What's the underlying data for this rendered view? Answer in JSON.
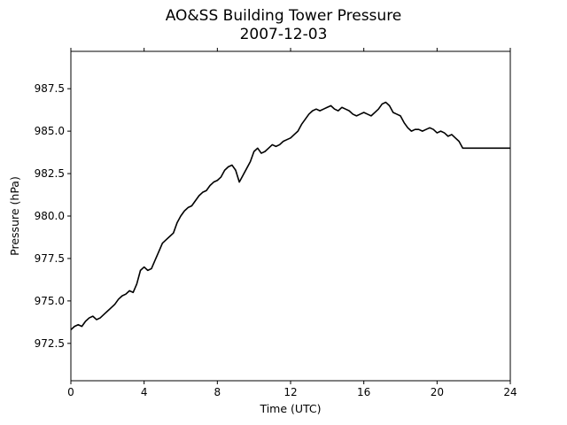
{
  "chart_data": {
    "type": "line",
    "title": "AO&SS Building Tower Pressure",
    "subtitle": "2007-12-03",
    "xlabel": "Time (UTC)",
    "ylabel": "Pressure (hPa)",
    "xlim": [
      0,
      24
    ],
    "ylim": [
      970.3,
      989.7
    ],
    "xticks": [
      0,
      4,
      8,
      12,
      16,
      20,
      24
    ],
    "xtick_labels": [
      "0",
      "4",
      "8",
      "12",
      "16",
      "20",
      "24"
    ],
    "yticks": [
      972.5,
      975.0,
      977.5,
      980.0,
      982.5,
      985.0,
      987.5
    ],
    "ytick_labels": [
      "972.5",
      "975.0",
      "977.5",
      "980.0",
      "982.5",
      "985.0",
      "987.5"
    ],
    "grid": false,
    "line_color": "#000000",
    "series": [
      {
        "x": [
          0,
          0.2,
          0.4,
          0.6,
          0.8,
          1.0,
          1.2,
          1.4,
          1.6,
          1.8,
          2.0,
          2.2,
          2.4,
          2.6,
          2.8,
          3.0,
          3.2,
          3.4,
          3.6,
          3.8,
          4.0,
          4.2,
          4.4,
          4.6,
          4.8,
          5.0,
          5.2,
          5.4,
          5.6,
          5.8,
          6.0,
          6.2,
          6.4,
          6.6,
          6.8,
          7.0,
          7.2,
          7.4,
          7.6,
          7.8,
          8.0,
          8.2,
          8.4,
          8.6,
          8.8,
          9.0,
          9.2,
          9.4,
          9.6,
          9.8,
          10.0,
          10.2,
          10.4,
          10.6,
          10.8,
          11.0,
          11.2,
          11.4,
          11.6,
          11.8,
          12.0,
          12.2,
          12.4,
          12.6,
          12.8,
          13.0,
          13.2,
          13.4,
          13.6,
          13.8,
          14.0,
          14.2,
          14.4,
          14.6,
          14.8,
          15.0,
          15.2,
          15.4,
          15.6,
          15.8,
          16.0,
          16.2,
          16.4,
          16.6,
          16.8,
          17.0,
          17.2,
          17.4,
          17.6,
          17.8,
          18.0,
          18.2,
          18.4,
          18.6,
          18.8,
          19.0,
          19.2,
          19.4,
          19.6,
          19.8,
          20.0,
          20.2,
          20.4,
          20.6,
          20.8,
          21.0,
          21.2,
          21.4,
          21.6,
          21.8,
          22.0,
          22.2,
          22.4,
          22.6,
          22.8,
          23.0,
          23.2,
          23.4,
          23.6,
          23.8,
          24.0
        ],
        "values": [
          973.3,
          973.5,
          973.6,
          973.5,
          973.8,
          974.0,
          974.1,
          973.9,
          974.0,
          974.2,
          974.4,
          974.6,
          974.8,
          975.1,
          975.3,
          975.4,
          975.6,
          975.5,
          976.0,
          976.8,
          977.0,
          976.8,
          976.9,
          977.4,
          977.9,
          978.4,
          978.6,
          978.8,
          979.0,
          979.6,
          980.0,
          980.3,
          980.5,
          980.6,
          980.9,
          981.2,
          981.4,
          981.5,
          981.8,
          982.0,
          982.1,
          982.3,
          982.7,
          982.9,
          983.0,
          982.7,
          982.0,
          982.4,
          982.8,
          983.2,
          983.8,
          984.0,
          983.7,
          983.8,
          984.0,
          984.2,
          984.1,
          984.2,
          984.4,
          984.5,
          984.6,
          984.8,
          985.0,
          985.4,
          985.7,
          986.0,
          986.2,
          986.3,
          986.2,
          986.3,
          986.4,
          986.5,
          986.3,
          986.2,
          986.4,
          986.3,
          986.2,
          986.0,
          985.9,
          986.0,
          986.1,
          986.0,
          985.9,
          986.1,
          986.3,
          986.6,
          986.7,
          986.5,
          986.1,
          986.0,
          985.9,
          985.5,
          985.2,
          985.0,
          985.1,
          985.1,
          985.0,
          985.1,
          985.2,
          985.1,
          984.9,
          985.0,
          984.9,
          984.7,
          984.8,
          984.6,
          984.4,
          984.0,
          984.0,
          984.0,
          984.0,
          984.0,
          984.0,
          984.0,
          984.0,
          984.0,
          984.0,
          984.0,
          984.0,
          984.0,
          984.0
        ]
      }
    ]
  }
}
